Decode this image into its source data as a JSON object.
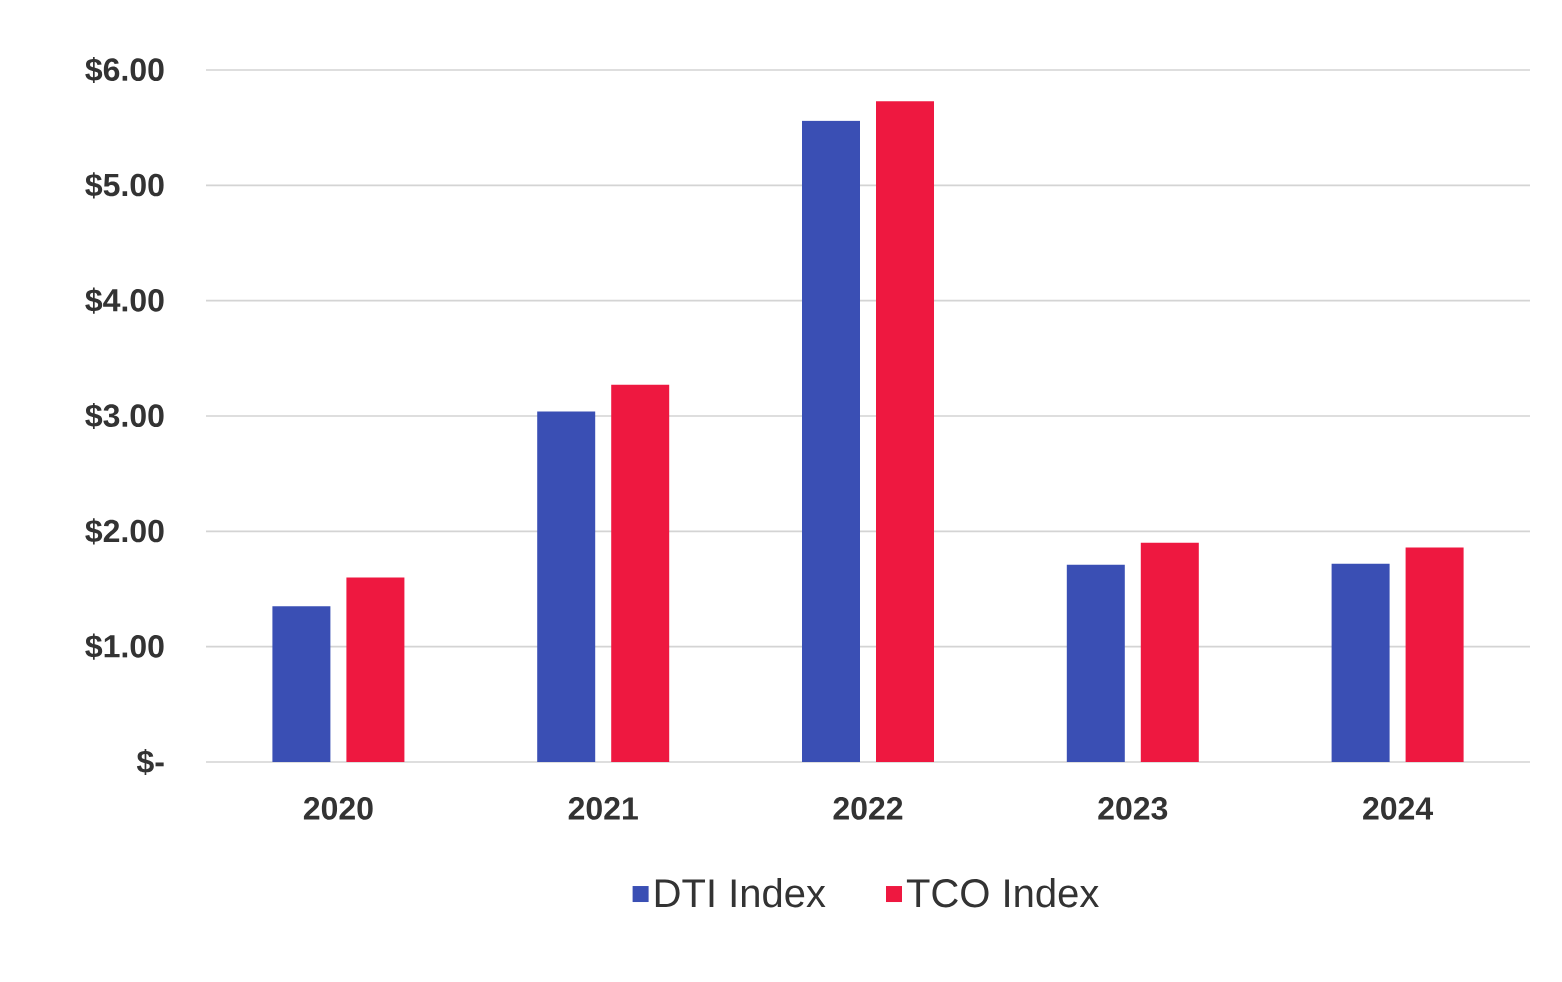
{
  "chart_data": {
    "type": "bar",
    "categories": [
      "2020",
      "2021",
      "2022",
      "2023",
      "2024"
    ],
    "series": [
      {
        "name": "DTI Index",
        "color": "#3a4fb4",
        "values": [
          1.35,
          3.04,
          5.56,
          1.71,
          1.72
        ]
      },
      {
        "name": "TCO Index",
        "color": "#ee1840",
        "values": [
          1.6,
          3.27,
          5.73,
          1.9,
          1.86
        ]
      }
    ],
    "ylim": [
      0,
      6
    ],
    "yticks": [
      {
        "value": 0,
        "label": "$-"
      },
      {
        "value": 1,
        "label": "$1.00"
      },
      {
        "value": 2,
        "label": "$2.00"
      },
      {
        "value": 3,
        "label": "$3.00"
      },
      {
        "value": 4,
        "label": "$4.00"
      },
      {
        "value": 5,
        "label": "$5.00"
      },
      {
        "value": 6,
        "label": "$6.00"
      }
    ],
    "grid": "y",
    "legend": "bottom"
  }
}
